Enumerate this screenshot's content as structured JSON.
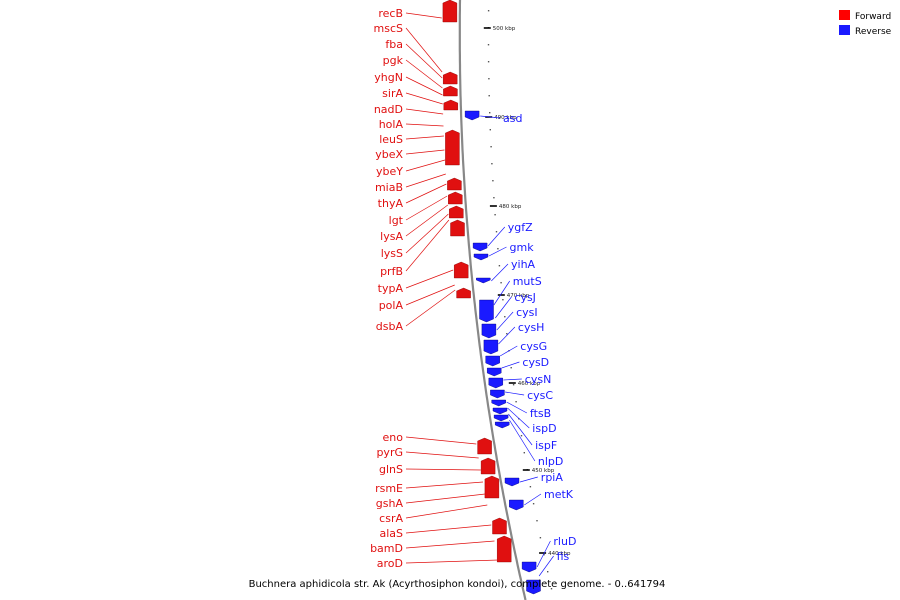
{
  "title": "Buchnera aphidicola str. Ak (Acyrthosiphon kondoi), complete genome. - 0..641794",
  "legend": [
    {
      "label": "Forward",
      "color": "#ff0000"
    },
    {
      "label": "Reverse",
      "color": "#1a1aff"
    }
  ],
  "colors": {
    "forward": "#e01010",
    "reverse": "#1a1aff",
    "backbone": "#888888"
  },
  "ticks": [
    "500 kbp",
    "490 kbp",
    "480 kbp",
    "470 kbp",
    "460 kbp",
    "450 kbp",
    "440 kbp"
  ],
  "forward_genes": [
    "recB",
    "mscS",
    "fba",
    "pgk",
    "yhgN",
    "sirA",
    "nadD",
    "holA",
    "leuS",
    "ybeX",
    "ybeY",
    "miaB",
    "thyA",
    "lgt",
    "lysA",
    "lysS",
    "prfB",
    "typA",
    "polA",
    "dsbA",
    "eno",
    "pyrG",
    "glnS",
    "rsmE",
    "gshA",
    "csrA",
    "alaS",
    "bamD",
    "aroD"
  ],
  "reverse_genes": [
    "asd",
    "ygfZ",
    "gmk",
    "yihA",
    "mutS",
    "cysJ",
    "cysI",
    "cysH",
    "cysG",
    "cysD",
    "cysN",
    "cysC",
    "ftsB",
    "ispD",
    "ispF",
    "nlpD",
    "rpiA",
    "metK",
    "rluD",
    "fis"
  ]
}
